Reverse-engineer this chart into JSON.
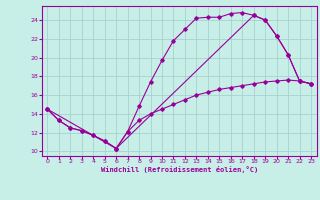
{
  "xlabel": "Windchill (Refroidissement éolien,°C)",
  "bg_color": "#c8eee8",
  "grid_color": "#a0cccc",
  "line_color": "#990099",
  "xlim": [
    -0.5,
    23.5
  ],
  "ylim": [
    9.5,
    25.5
  ],
  "yticks": [
    10,
    12,
    14,
    16,
    18,
    20,
    22,
    24
  ],
  "xticks": [
    0,
    1,
    2,
    3,
    4,
    5,
    6,
    7,
    8,
    9,
    10,
    11,
    12,
    13,
    14,
    15,
    16,
    17,
    18,
    19,
    20,
    21,
    22,
    23
  ],
  "line1_x": [
    0,
    1,
    2,
    3,
    4,
    5,
    6,
    7,
    8,
    9,
    10,
    11,
    12,
    13,
    14,
    15,
    16,
    17,
    18,
    19,
    20,
    21,
    22,
    23
  ],
  "line1_y": [
    14.5,
    13.3,
    12.5,
    12.2,
    11.7,
    11.1,
    10.3,
    12.1,
    14.8,
    17.4,
    19.7,
    21.8,
    23.0,
    24.2,
    24.3,
    24.3,
    24.7,
    24.8,
    24.5,
    24.0,
    22.3,
    20.3,
    17.5,
    17.2
  ],
  "line2_x": [
    0,
    6,
    7,
    8,
    9,
    10,
    11,
    12,
    13,
    14,
    15,
    16,
    17,
    18,
    19,
    20,
    21,
    22,
    23
  ],
  "line2_y": [
    14.5,
    10.3,
    12.1,
    13.3,
    14.0,
    14.5,
    15.0,
    15.5,
    16.0,
    16.3,
    16.6,
    16.8,
    17.0,
    17.2,
    17.4,
    17.5,
    17.6,
    17.5,
    17.2
  ],
  "line3_x": [
    0,
    1,
    2,
    3,
    4,
    5,
    6,
    18,
    19,
    20,
    21,
    22,
    23
  ],
  "line3_y": [
    14.5,
    13.3,
    12.5,
    12.2,
    11.7,
    11.1,
    10.3,
    24.5,
    24.0,
    22.3,
    20.3,
    17.5,
    17.2
  ]
}
